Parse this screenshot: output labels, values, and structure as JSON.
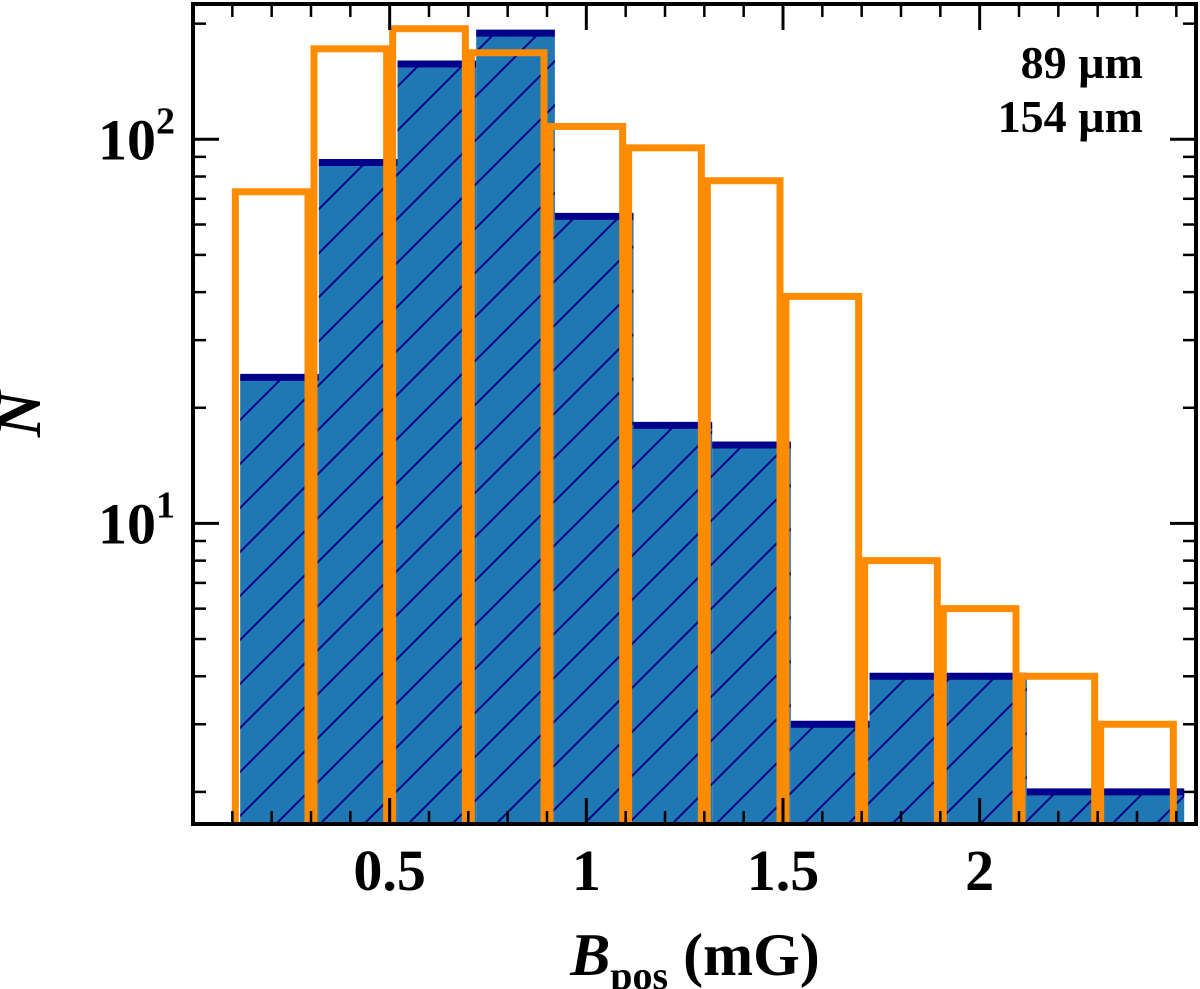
{
  "chart_data": {
    "type": "bar",
    "title": "",
    "xlabel_main": "B",
    "xlabel_sub": "pos",
    "xlabel_unit": " (mG)",
    "ylabel": "N",
    "xlim": [
      0.0,
      2.55
    ],
    "ylim": [
      1.65,
      225
    ],
    "yscale": "log",
    "xticks": [
      0.5,
      1,
      1.5,
      2
    ],
    "xtick_labels": [
      "0.5",
      "1",
      "1.5",
      "2"
    ],
    "yticks_major": [
      10,
      100
    ],
    "ytick_labels": [
      {
        "base": "10",
        "exp": "1"
      },
      {
        "base": "10",
        "exp": "2"
      }
    ],
    "series": [
      {
        "name": "89 µm",
        "legend_label": "89 µm",
        "color": "#00008b",
        "fill": "#1f77b4",
        "hatch": "/",
        "bins": [
          {
            "x0": 0.12,
            "x1": 0.32,
            "value": 24
          },
          {
            "x0": 0.32,
            "x1": 0.52,
            "value": 87
          },
          {
            "x0": 0.52,
            "x1": 0.72,
            "value": 157
          },
          {
            "x0": 0.72,
            "x1": 0.92,
            "value": 189
          },
          {
            "x0": 0.92,
            "x1": 1.12,
            "value": 63
          },
          {
            "x0": 1.12,
            "x1": 1.32,
            "value": 18
          },
          {
            "x0": 1.32,
            "x1": 1.52,
            "value": 16
          },
          {
            "x0": 1.52,
            "x1": 1.72,
            "value": 3
          },
          {
            "x0": 1.72,
            "x1": 1.92,
            "value": 4
          },
          {
            "x0": 1.92,
            "x1": 2.12,
            "value": 4
          },
          {
            "x0": 2.12,
            "x1": 2.32,
            "value": 2
          },
          {
            "x0": 2.32,
            "x1": 2.52,
            "value": 2
          }
        ]
      },
      {
        "name": "154 µm",
        "legend_label": "154 µm",
        "color": "#ff8c00",
        "fill": "none",
        "bins": [
          {
            "x0": 0.1,
            "x1": 0.3,
            "value": 73
          },
          {
            "x0": 0.3,
            "x1": 0.5,
            "value": 172
          },
          {
            "x0": 0.5,
            "x1": 0.7,
            "value": 194
          },
          {
            "x0": 0.7,
            "x1": 0.9,
            "value": 168
          },
          {
            "x0": 0.9,
            "x1": 1.1,
            "value": 108
          },
          {
            "x0": 1.1,
            "x1": 1.3,
            "value": 95
          },
          {
            "x0": 1.3,
            "x1": 1.5,
            "value": 78
          },
          {
            "x0": 1.5,
            "x1": 1.7,
            "value": 39
          },
          {
            "x0": 1.7,
            "x1": 1.9,
            "value": 8
          },
          {
            "x0": 1.9,
            "x1": 2.1,
            "value": 6
          },
          {
            "x0": 2.1,
            "x1": 2.3,
            "value": 4
          },
          {
            "x0": 2.3,
            "x1": 2.5,
            "value": 3
          }
        ]
      }
    ]
  }
}
